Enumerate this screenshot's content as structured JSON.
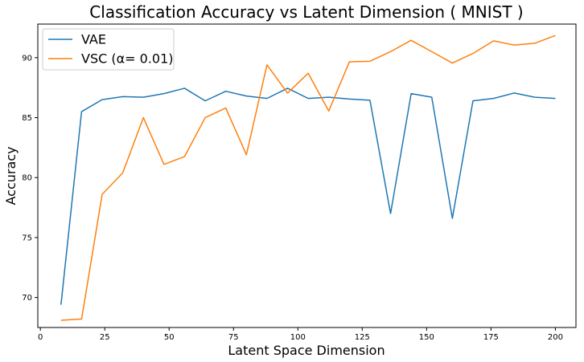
{
  "chart_data": {
    "type": "line",
    "title": "Classification Accuracy vs Latent Dimension ( MNIST )",
    "xlabel": "Latent Space Dimension",
    "ylabel": "Accuracy",
    "xlim": [
      -1,
      208
    ],
    "ylim": [
      67.5,
      92.8
    ],
    "xticks": [
      0,
      25,
      50,
      75,
      100,
      125,
      150,
      175,
      200
    ],
    "yticks": [
      70,
      75,
      80,
      85,
      90
    ],
    "grid": false,
    "legend_position": "top-left",
    "x": [
      8,
      16,
      24,
      32,
      40,
      48,
      56,
      64,
      72,
      80,
      88,
      96,
      104,
      112,
      120,
      128,
      136,
      144,
      152,
      160,
      168,
      176,
      184,
      192,
      200
    ],
    "series": [
      {
        "name": "VAE",
        "color": "#1f77b4",
        "values": [
          69.4,
          85.5,
          86.5,
          86.75,
          86.7,
          87.0,
          87.45,
          86.4,
          87.2,
          86.8,
          86.6,
          87.45,
          86.6,
          86.7,
          86.55,
          86.45,
          77.0,
          87.0,
          86.7,
          76.6,
          86.4,
          86.6,
          87.05,
          86.7,
          86.6
        ]
      },
      {
        "name": "VSC (α= 0.01)",
        "color": "#ff7f0e",
        "values": [
          68.1,
          68.2,
          78.6,
          80.4,
          85.0,
          81.1,
          81.75,
          85.0,
          85.8,
          81.9,
          89.4,
          87.05,
          88.7,
          85.55,
          89.65,
          89.7,
          90.5,
          91.45,
          90.5,
          89.55,
          90.35,
          91.4,
          91.05,
          91.2,
          91.85
        ]
      }
    ]
  }
}
